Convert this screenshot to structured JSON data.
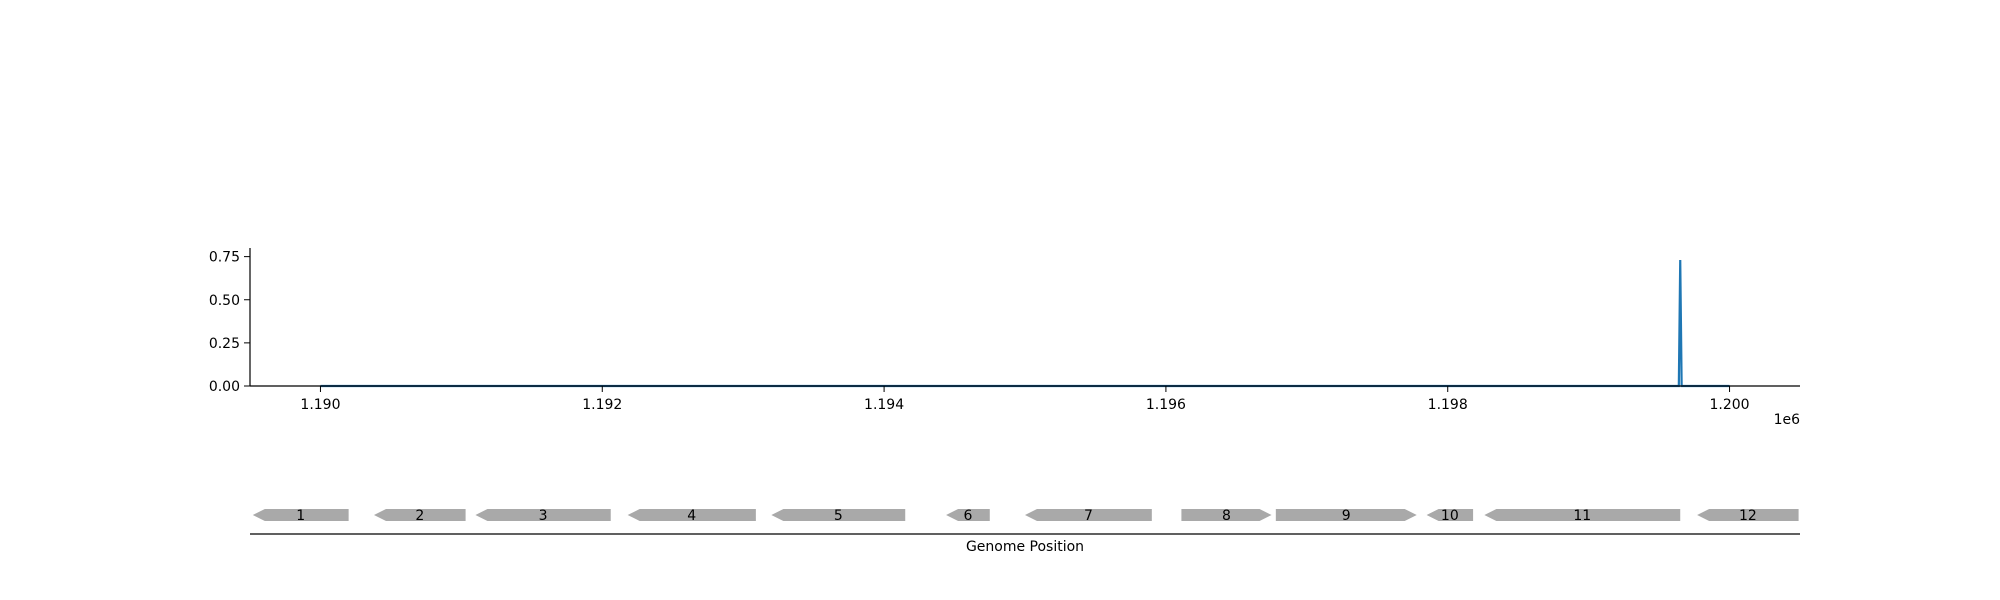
{
  "chart_data": {
    "type": "line",
    "title": "",
    "xlabel": "Genome Position",
    "ylabel": "",
    "x_offset_label": "1e6",
    "xlim": [
      1189500,
      1200500
    ],
    "ylim": [
      0,
      0.8
    ],
    "grid": false,
    "x_ticks": [
      {
        "value": 1190000,
        "label": "1.190"
      },
      {
        "value": 1192000,
        "label": "1.192"
      },
      {
        "value": 1194000,
        "label": "1.194"
      },
      {
        "value": 1196000,
        "label": "1.196"
      },
      {
        "value": 1198000,
        "label": "1.198"
      },
      {
        "value": 1200000,
        "label": "1.200"
      }
    ],
    "y_ticks": [
      {
        "value": 0,
        "label": "0.00"
      },
      {
        "value": 0.25,
        "label": "0.25"
      },
      {
        "value": 0.5,
        "label": "0.50"
      },
      {
        "value": 0.75,
        "label": "0.75"
      }
    ],
    "series": [
      {
        "color": "#1f77b4",
        "points": [
          [
            1190000,
            0
          ],
          [
            1199640,
            0
          ],
          [
            1199650,
            0.73
          ],
          [
            1199660,
            0
          ],
          [
            1200000,
            0
          ]
        ]
      }
    ],
    "genes": [
      {
        "label": "1",
        "start": 1189520,
        "end": 1190200,
        "strand": "-"
      },
      {
        "label": "2",
        "start": 1190380,
        "end": 1191030,
        "strand": "-"
      },
      {
        "label": "3",
        "start": 1191100,
        "end": 1192060,
        "strand": "-"
      },
      {
        "label": "4",
        "start": 1192180,
        "end": 1193090,
        "strand": "-"
      },
      {
        "label": "5",
        "start": 1193200,
        "end": 1194150,
        "strand": "-"
      },
      {
        "label": "6",
        "start": 1194440,
        "end": 1194750,
        "strand": "-"
      },
      {
        "label": "7",
        "start": 1195000,
        "end": 1195900,
        "strand": "-"
      },
      {
        "label": "8",
        "start": 1196110,
        "end": 1196750,
        "strand": "+"
      },
      {
        "label": "9",
        "start": 1196780,
        "end": 1197780,
        "strand": "+"
      },
      {
        "label": "10",
        "start": 1197850,
        "end": 1198180,
        "strand": "-"
      },
      {
        "label": "11",
        "start": 1198260,
        "end": 1199650,
        "strand": "-"
      },
      {
        "label": "12",
        "start": 1199770,
        "end": 1200490,
        "strand": "-"
      }
    ],
    "gene_color": "#a9a9a9"
  }
}
